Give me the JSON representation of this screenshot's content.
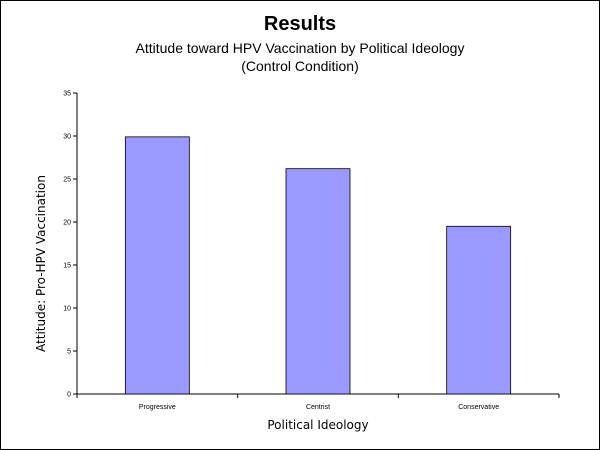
{
  "chart_data": {
    "type": "bar",
    "title": "Results",
    "subtitle": [
      "Attitude toward HPV Vaccination by Political Ideology",
      "(Control Condition)"
    ],
    "xlabel": "Political Ideology",
    "ylabel": "Attitude:  Pro-HPV Vaccination",
    "categories": [
      "Progressive",
      "Centrist",
      "Conservative"
    ],
    "values": [
      29.9,
      26.2,
      19.5
    ],
    "ylim": [
      0,
      35
    ],
    "yticks": [
      0,
      5,
      10,
      15,
      20,
      25,
      30,
      35
    ],
    "grid": false,
    "legend": "none",
    "bar_color": "#9999ff",
    "bar_edge_color": "#000000"
  }
}
